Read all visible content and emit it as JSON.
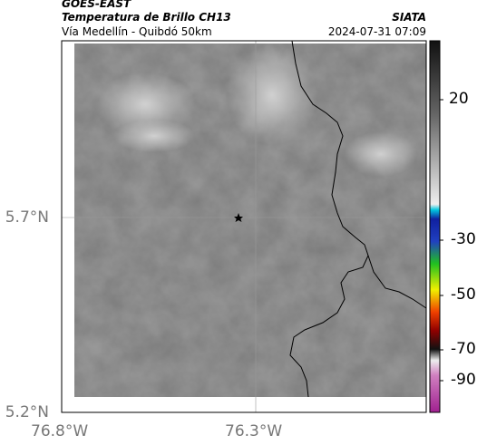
{
  "header": {
    "title": "GOES-EAST",
    "subtitle": "Temperatura de Brillo CH13",
    "region": "Vía Medellín - Quibdó 50km",
    "source": "SIATA",
    "datetime": "2024-07-31 07:09"
  },
  "map": {
    "lat_labels": [
      "5.7°N",
      "5.2°N"
    ],
    "lon_labels": [
      "76.8°W",
      "76.3°W"
    ]
  },
  "colorbar": {
    "ticks": [
      20,
      -30,
      -50,
      -70,
      -90
    ]
  }
}
